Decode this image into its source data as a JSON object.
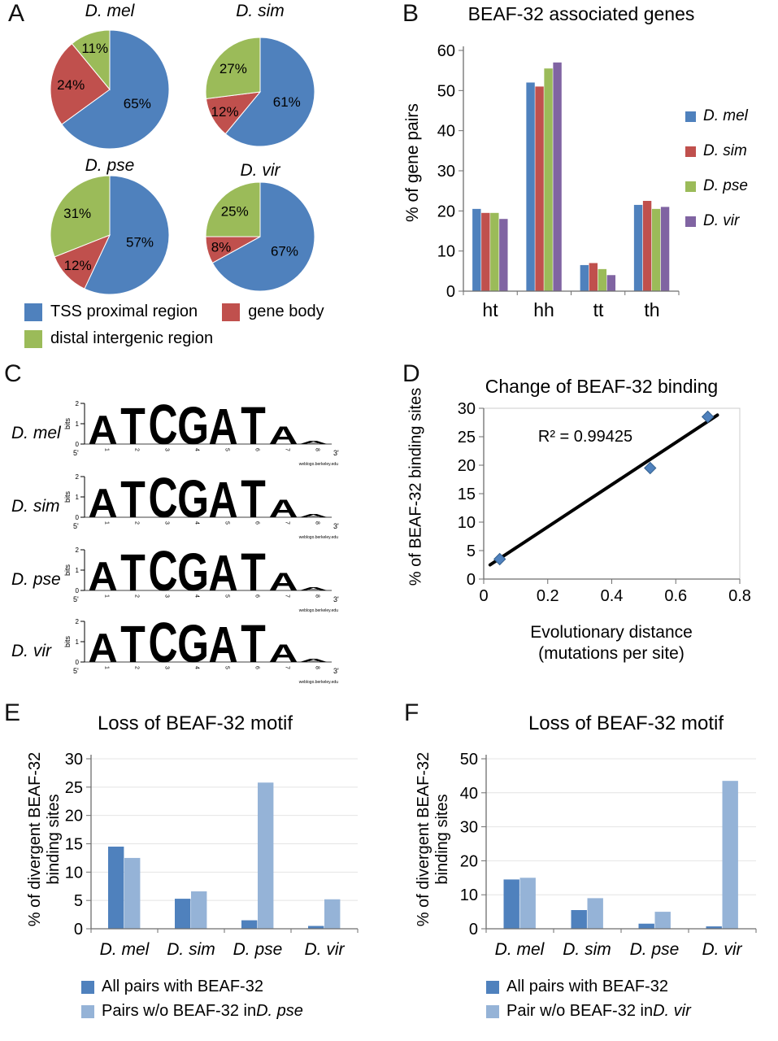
{
  "panels": {
    "A": {
      "label": "A"
    },
    "B": {
      "label": "B"
    },
    "C": {
      "label": "C"
    },
    "D": {
      "label": "D"
    },
    "E": {
      "label": "E"
    },
    "F": {
      "label": "F"
    }
  },
  "chart_data": [
    {
      "panel": "A",
      "type": "pie",
      "legend": [
        {
          "label": "TSS proximal region",
          "color": "#4F81BD"
        },
        {
          "label": "gene body",
          "color": "#C0504D"
        },
        {
          "label": "distal intergenic region",
          "color": "#9BBB59"
        }
      ],
      "pies": [
        {
          "title": "D. mel",
          "values": [
            65,
            24,
            11
          ],
          "labels": [
            "65%",
            "24%",
            "11%"
          ]
        },
        {
          "title": "D. sim",
          "values": [
            61,
            12,
            27
          ],
          "labels": [
            "61%",
            "12%",
            "27%"
          ]
        },
        {
          "title": "D. pse",
          "values": [
            57,
            12,
            31
          ],
          "labels": [
            "57%",
            "12%",
            "31%"
          ]
        },
        {
          "title": "D. vir",
          "values": [
            67,
            8,
            25
          ],
          "labels": [
            "67%",
            "8%",
            "25%"
          ]
        }
      ]
    },
    {
      "panel": "B",
      "type": "bar",
      "title": "BEAF-32 associated genes",
      "ylabel": "% of gene pairs",
      "ylim": [
        0,
        60
      ],
      "ytick_step": 10,
      "categories": [
        "ht",
        "hh",
        "tt",
        "th"
      ],
      "series": [
        {
          "name": "D. mel",
          "color": "#4F81BD",
          "values": [
            20.5,
            52,
            6.5,
            21.5
          ]
        },
        {
          "name": "D. sim",
          "color": "#C0504D",
          "values": [
            19.5,
            51,
            7,
            22.5
          ]
        },
        {
          "name": "D. pse",
          "color": "#9BBB59",
          "values": [
            19.5,
            55.5,
            5.5,
            20.5
          ]
        },
        {
          "name": "D. vir",
          "color": "#8064A2",
          "values": [
            18,
            57,
            4,
            21
          ]
        }
      ]
    },
    {
      "panel": "C",
      "type": "sequence_logo",
      "species": [
        "D. mel",
        "D. sim",
        "D. pse",
        "D. vir"
      ],
      "motif": [
        "A",
        "T",
        "C",
        "G",
        "A",
        "T",
        "A"
      ],
      "letter_heights_bits": [
        1.45,
        1.85,
        2.0,
        1.9,
        1.8,
        1.9,
        0.9
      ],
      "trailing_height_bits": 0.15,
      "letter_colors": {
        "A": "#1AA31A",
        "T": "#CC2222",
        "C": "#2222CC",
        "G": "#F2A900"
      },
      "ylabel": "bits",
      "yticks": [
        0,
        1,
        2
      ],
      "positions": [
        1,
        2,
        3,
        4,
        5,
        6,
        7,
        8
      ],
      "five_prime": "5'",
      "three_prime": "3'",
      "credit": "weblogo.berkeley.edu"
    },
    {
      "panel": "D",
      "type": "scatter",
      "title": "Change of BEAF-32 binding",
      "ylabel": "% of BEAF-32 binding sites",
      "xlabel_line1": "Evolutionary distance",
      "xlabel_line2": "(mutations per site)",
      "xlim": [
        0,
        0.8
      ],
      "xtick_step": 0.2,
      "ylim": [
        0,
        30
      ],
      "ytick_step": 5,
      "points": [
        [
          0.05,
          3.5
        ],
        [
          0.52,
          19.5
        ],
        [
          0.7,
          28.5
        ]
      ],
      "trendline": [
        [
          0.02,
          2.5
        ],
        [
          0.73,
          28.8
        ]
      ],
      "annotation": "R² = 0.99425",
      "marker_color": "#4F81BD"
    },
    {
      "panel": "E",
      "type": "bar",
      "title": "Loss of BEAF-32 motif",
      "ylabel_line1": "% of divergent BEAF-32",
      "ylabel_line2": "binding sites",
      "ylim": [
        0,
        30
      ],
      "ytick_step": 5,
      "categories": [
        "D. mel",
        "D. sim",
        "D. pse",
        "D. vir"
      ],
      "series": [
        {
          "name": "All pairs with BEAF-32",
          "color": "#4F81BD",
          "values": [
            14.5,
            5.3,
            1.5,
            0.5
          ]
        },
        {
          "name_prefix": "Pairs w/o BEAF-32 in ",
          "name_species": "D. pse",
          "color": "#95B3D7",
          "values": [
            12.5,
            6.6,
            25.8,
            5.2
          ]
        }
      ]
    },
    {
      "panel": "F",
      "type": "bar",
      "title": "Loss of BEAF-32 motif",
      "ylabel_line1": "% of divergent BEAF-32",
      "ylabel_line2": "binding sites",
      "ylim": [
        0,
        50
      ],
      "ytick_step": 10,
      "categories": [
        "D. mel",
        "D. sim",
        "D. pse",
        "D. vir"
      ],
      "series": [
        {
          "name": "All pairs with BEAF-32",
          "color": "#4F81BD",
          "values": [
            14.5,
            5.5,
            1.5,
            0.7
          ]
        },
        {
          "name_prefix": "Pair w/o BEAF-32 in ",
          "name_species": "D. vir",
          "color": "#95B3D7",
          "values": [
            15,
            9,
            5,
            43.5
          ]
        }
      ]
    }
  ]
}
